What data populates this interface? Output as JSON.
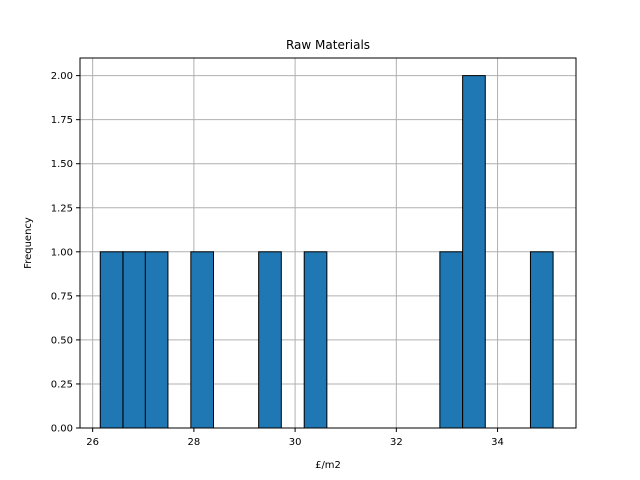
{
  "chart_data": {
    "type": "bar",
    "title": "Raw Materials",
    "xlabel": "£/m2",
    "ylabel": "Frequency",
    "xlim": [
      25.75,
      35.55
    ],
    "ylim": [
      0,
      2.1
    ],
    "grid": true,
    "bin_width": 0.4475,
    "bins": [
      {
        "x0": 26.15,
        "value": 1
      },
      {
        "x0": 26.6,
        "value": 1
      },
      {
        "x0": 27.04,
        "value": 1
      },
      {
        "x0": 27.94,
        "value": 1
      },
      {
        "x0": 29.28,
        "value": 1
      },
      {
        "x0": 30.18,
        "value": 1
      },
      {
        "x0": 32.86,
        "value": 1
      },
      {
        "x0": 33.31,
        "value": 2
      },
      {
        "x0": 34.65,
        "value": 1
      }
    ],
    "x_ticks": [
      26,
      28,
      30,
      32,
      34
    ],
    "x_tick_labels": [
      "26",
      "28",
      "30",
      "32",
      "34"
    ],
    "y_ticks": [
      0,
      0.25,
      0.5,
      0.75,
      1.0,
      1.25,
      1.5,
      1.75,
      2.0
    ],
    "y_tick_labels": [
      "0.00",
      "0.25",
      "0.50",
      "0.75",
      "1.00",
      "1.25",
      "1.50",
      "1.75",
      "2.00"
    ],
    "colors": {
      "bar": "#1f77b4",
      "edge": "#000000",
      "grid": "#b0b0b0"
    }
  }
}
